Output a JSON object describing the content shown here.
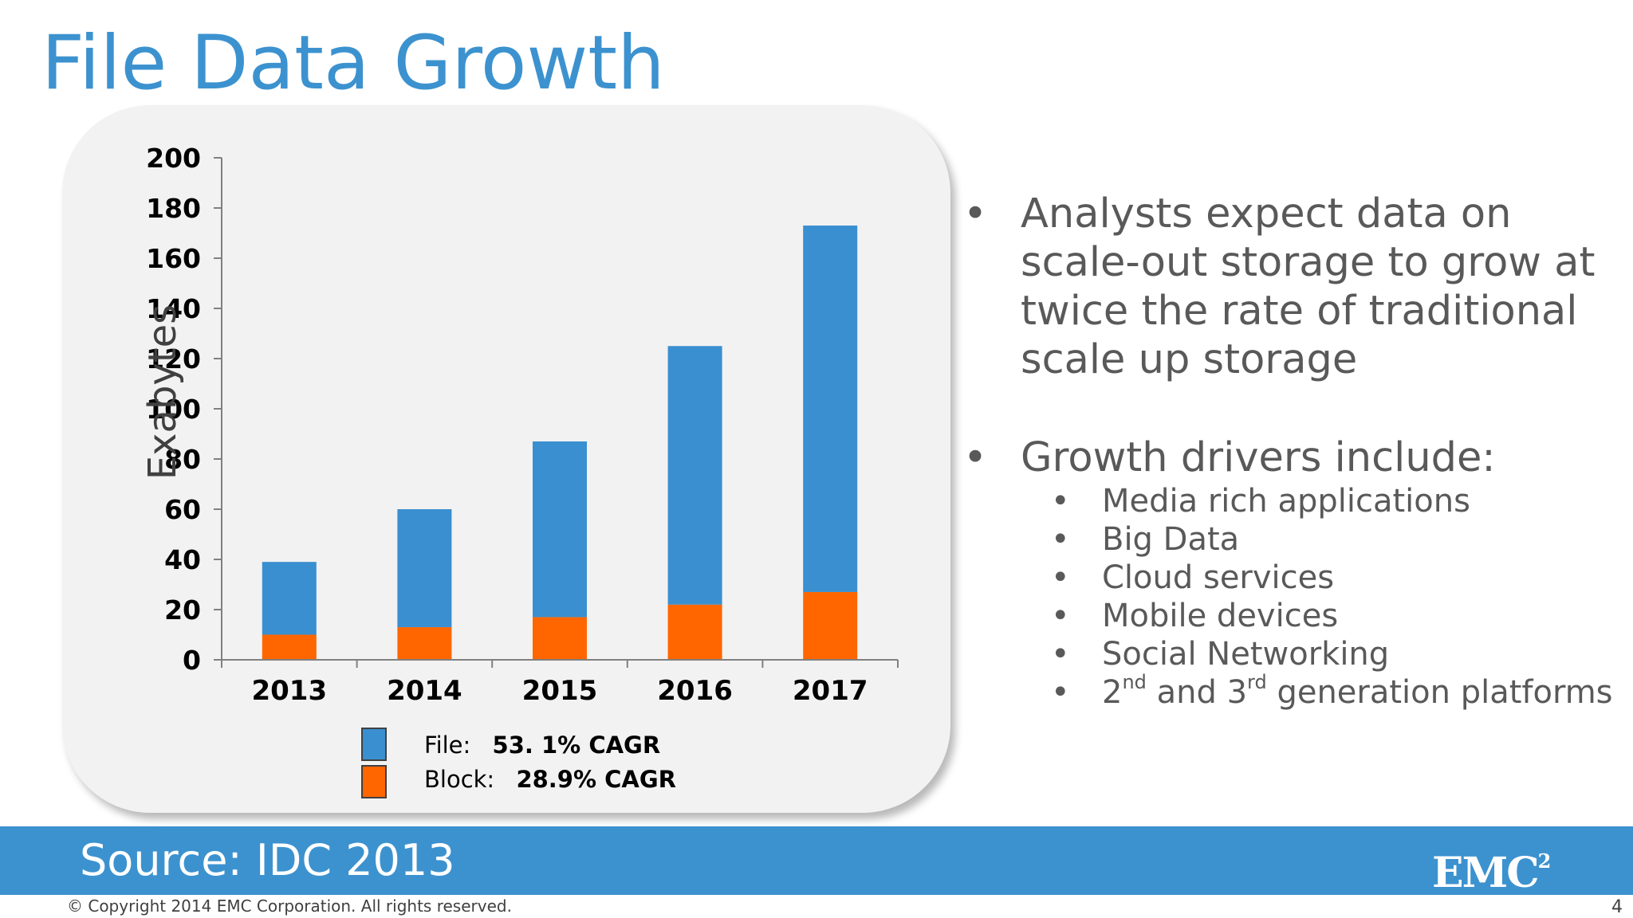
{
  "slide": {
    "title": "File Data Growth",
    "source": "Source: IDC 2013",
    "copyright": "© Copyright 2014 EMC Corporation. All rights reserved.",
    "page_number": "4",
    "logo": {
      "text": "EMC",
      "superscript": "2"
    }
  },
  "bullets": {
    "item1": "Analysts expect data on scale-out storage to grow at twice the rate of traditional scale up storage",
    "item2": "Growth drivers include:",
    "sub": [
      "Media rich applications",
      "Big Data",
      "Cloud services",
      "Mobile devices",
      "Social Networking"
    ],
    "sub_last": {
      "p1": "2",
      "sup1": "nd",
      "p2": " and 3",
      "sup2": "rd",
      "p3": " generation platforms"
    }
  },
  "legend": {
    "file_label": "File:",
    "file_value": "53. 1% CAGR",
    "block_label": "Block:",
    "block_value": "28.9% CAGR"
  },
  "colors": {
    "file": "#3a8fd0",
    "block": "#ff6600",
    "title": "#3c92cf",
    "bar_band": "#3c92cf"
  },
  "chart_data": {
    "type": "bar",
    "stacked": true,
    "categories": [
      "2013",
      "2014",
      "2015",
      "2016",
      "2017"
    ],
    "series": [
      {
        "name": "Block",
        "values": [
          10,
          13,
          17,
          22,
          27
        ]
      },
      {
        "name": "File",
        "values": [
          29,
          47,
          70,
          103,
          146
        ]
      }
    ],
    "ylabel": "Exabytes",
    "xlabel": "",
    "ylim": [
      0,
      200
    ],
    "yticks": [
      0,
      20,
      40,
      60,
      80,
      100,
      120,
      140,
      160,
      180,
      200
    ],
    "grid": false,
    "legend_position": "bottom"
  }
}
